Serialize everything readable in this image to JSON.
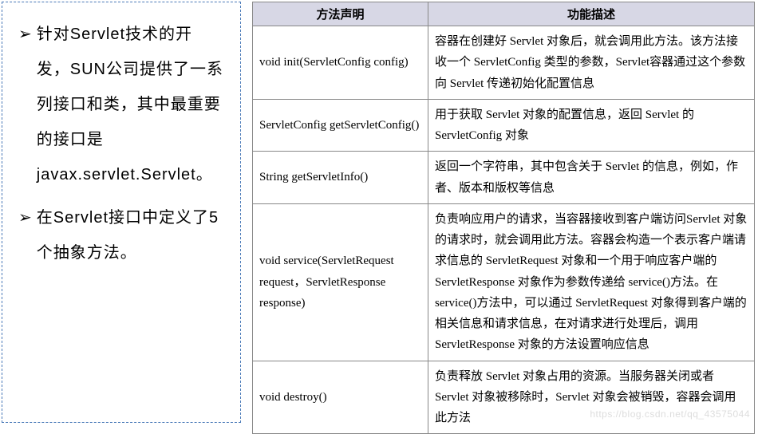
{
  "left": {
    "bullets": [
      "针对Servlet技术的开发，SUN公司提供了一系列接口和类，其中最重要的接口是javax.servlet.Servlet。",
      "在Servlet接口中定义了5个抽象方法。"
    ],
    "marker": "➢"
  },
  "table": {
    "headers": [
      "方法声明",
      "功能描述"
    ],
    "rows": [
      {
        "method": "void init(ServletConfig  config)",
        "desc": "容器在创建好 Servlet 对象后，就会调用此方法。该方法接收一个 ServletConfig 类型的参数，Servlet容器通过这个参数向 Servlet 传递初始化配置信息"
      },
      {
        "method": "ServletConfig getServletConfig()",
        "desc": "用于获取 Servlet 对象的配置信息，返回 Servlet 的ServletConfig 对象"
      },
      {
        "method": "String getServletInfo()",
        "desc": "返回一个字符串，其中包含关于 Servlet 的信息，例如，作者、版本和版权等信息"
      },
      {
        "method": "void service(ServletRequest request，ServletResponse response)",
        "desc": "负责响应用户的请求，当容器接收到客户端访问Servlet 对象的请求时，就会调用此方法。容器会构造一个表示客户端请求信息的 ServletRequest 对象和一个用于响应客户端的 ServletResponse 对象作为参数传递给 service()方法。在 service()方法中，可以通过 ServletRequest 对象得到客户端的相关信息和请求信息，在对请求进行处理后，调用ServletResponse 对象的方法设置响应信息"
      },
      {
        "method": "void destroy()",
        "desc": "负责释放 Servlet 对象占用的资源。当服务器关闭或者 Servlet 对象被移除时，Servlet 对象会被销毁，容器会调用此方法"
      }
    ]
  },
  "watermark": "https://blog.csdn.net/qq_43575044",
  "colors": {
    "border_dashed": "#4a7ab8",
    "header_bg": "#d7d7e5",
    "cell_border": "#888888",
    "text": "#000000",
    "watermark": "#dddddd"
  },
  "fonts": {
    "bullet_size": 20,
    "table_size": 15
  }
}
